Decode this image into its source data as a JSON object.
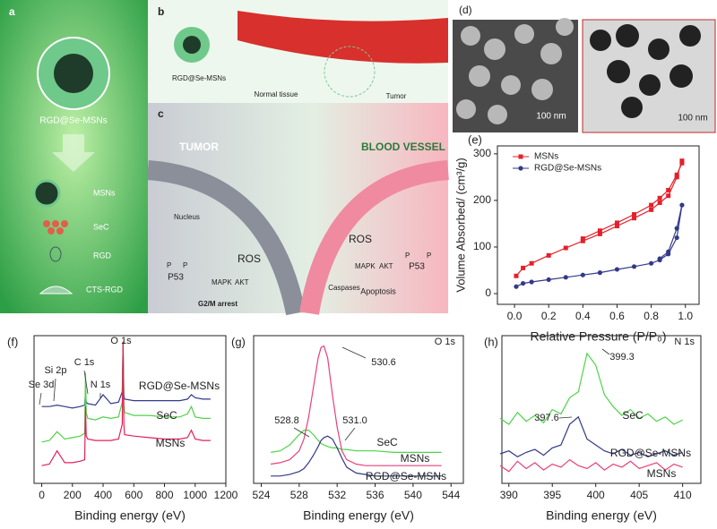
{
  "scheme": {
    "panel_a": {
      "label": "a",
      "title": "RGD@Se-MSNs",
      "components": [
        "MSNs",
        "SeC",
        "RGD",
        "CTS-RGD"
      ]
    },
    "panel_b": {
      "label": "b",
      "nanoparticle": "RGD@Se-MSNs",
      "normal": "Normal tissue",
      "tumor": "Tumor"
    },
    "panel_c": {
      "label": "c",
      "left_title": "TUMOR",
      "right_title": "BLOOD VESSEL",
      "nucleus": "Nucleus",
      "left_ros": "ROS",
      "left_p": [
        "P",
        "P"
      ],
      "left_p53": "P53",
      "left_kinases": [
        "MAPK",
        "AKT"
      ],
      "left_outcome": "G2/M arrest",
      "right_ros": "ROS",
      "right_kinases": [
        "MAPK",
        "AKT"
      ],
      "right_p": [
        "P",
        "P"
      ],
      "right_p53": "P53",
      "caspases": "Caspases",
      "right_outcome": "Apoptosis"
    },
    "panel_d": {
      "label": "(d)",
      "scale_bars": [
        "100 nm",
        "100 nm"
      ]
    }
  },
  "chart_data": [
    {
      "type": "line",
      "label": "(e)",
      "xlabel": "Relative Pressure (P/P₀)",
      "ylabel": "Volume Absorbed/ (cm³/g)",
      "xlim": [
        -0.1,
        1.08
      ],
      "ylim": [
        -23,
        317
      ],
      "xticks": [
        {
          "value": 0,
          "label": "0.0"
        },
        0.2,
        0.4,
        0.6,
        0.8,
        {
          "value": 1,
          "label": "1.0"
        }
      ],
      "yticks": [
        0,
        100,
        200,
        300
      ],
      "legend": "upper left",
      "series": [
        {
          "name": "MSNs",
          "color": "#e4202a",
          "marker": "square",
          "x": [
            0.01,
            0.05,
            0.1,
            0.2,
            0.3,
            0.4,
            0.5,
            0.6,
            0.7,
            0.8,
            0.85,
            0.9,
            0.95,
            0.98,
            0.98,
            0.95,
            0.9,
            0.85,
            0.8,
            0.7,
            0.6,
            0.5,
            0.4
          ],
          "values": [
            38,
            55,
            65,
            82,
            98,
            113,
            128,
            145,
            162,
            180,
            195,
            210,
            250,
            285,
            280,
            255,
            222,
            205,
            190,
            170,
            152,
            135,
            118
          ]
        },
        {
          "name": "RGD@Se-MSNs",
          "color": "#33398a",
          "marker": "circle",
          "x": [
            0.01,
            0.05,
            0.1,
            0.2,
            0.3,
            0.4,
            0.5,
            0.6,
            0.7,
            0.8,
            0.85,
            0.9,
            0.95,
            0.98,
            0.95,
            0.9,
            0.85
          ],
          "values": [
            15,
            22,
            25,
            30,
            35,
            40,
            45,
            52,
            58,
            65,
            72,
            85,
            120,
            190,
            140,
            90,
            75
          ]
        }
      ]
    },
    {
      "type": "line",
      "label": "(f)",
      "xlabel": "Binding energy (eV)",
      "xlim": [
        -50,
        1200
      ],
      "ylim": [
        0,
        100
      ],
      "xticks": [
        0,
        200,
        400,
        600,
        800,
        1000,
        1200
      ],
      "annotations": [
        "O 1s",
        "C 1s",
        "N 1s",
        "Si 2p",
        "Se 3d"
      ],
      "x": [
        0,
        50,
        100,
        150,
        200,
        250,
        280,
        285,
        290,
        300,
        350,
        400,
        450,
        500,
        525,
        530,
        535,
        540,
        600,
        700,
        800,
        900,
        950,
        975,
        1000,
        1050,
        1100
      ],
      "series": [
        {
          "name": "RGD@Se-MSNs",
          "color": "#33398a",
          "values": [
            52,
            52,
            53,
            52,
            51,
            52,
            53,
            62,
            55,
            54,
            53,
            60,
            54,
            55,
            62,
            95,
            60,
            57,
            56,
            56,
            56,
            56,
            57,
            60,
            58,
            57,
            57
          ]
        },
        {
          "name": "SeC",
          "color": "#4fd34a",
          "values": [
            28,
            29,
            35,
            30,
            31,
            32,
            34,
            75,
            48,
            44,
            43,
            45,
            44,
            45,
            55,
            96,
            55,
            48,
            46,
            46,
            45,
            45,
            47,
            52,
            45,
            44,
            44
          ]
        },
        {
          "name": "MSNs",
          "color": "#e4205a",
          "values": [
            12,
            13,
            22,
            14,
            14,
            15,
            16,
            52,
            32,
            30,
            29,
            29,
            29,
            30,
            40,
            96,
            40,
            33,
            32,
            31,
            30,
            30,
            31,
            36,
            30,
            29,
            29
          ]
        }
      ]
    },
    {
      "type": "line",
      "label": "(g)",
      "xlabel": "Binding energy (eV)",
      "xlim": [
        523.2,
        545.3
      ],
      "ylim": [
        0,
        100
      ],
      "xticks": [
        524,
        528,
        532,
        536,
        540,
        544
      ],
      "annotations": [
        "O 1s",
        "530.6",
        "528.8",
        "531.0"
      ],
      "x": [
        525,
        526,
        527,
        528,
        528.5,
        529,
        529.5,
        530,
        530.3,
        530.6,
        531,
        531.5,
        532,
        532.5,
        533,
        534,
        535,
        536,
        538,
        540,
        542,
        543
      ],
      "series": [
        {
          "name": "SeC",
          "color": "#4fd34a",
          "values": [
            21,
            22,
            26,
            33,
            36,
            36,
            33,
            29,
            27,
            26,
            25,
            24,
            24,
            23,
            23,
            22,
            22,
            22,
            21,
            21,
            21,
            21
          ]
        },
        {
          "name": "MSNs",
          "color": "#e8407a",
          "values": [
            13,
            14,
            16,
            22,
            30,
            45,
            65,
            85,
            92,
            93,
            85,
            60,
            38,
            22,
            16,
            13,
            12,
            12,
            12,
            12,
            12,
            12
          ]
        },
        {
          "name": "RGD@Se-MSNs",
          "color": "#33398a",
          "values": [
            5,
            5,
            6,
            8,
            10,
            14,
            19,
            25,
            29,
            31,
            32,
            30,
            24,
            17,
            11,
            7,
            6,
            5,
            5,
            5,
            5,
            5
          ]
        }
      ]
    },
    {
      "type": "line",
      "label": "(h)",
      "xlabel": "Binding energy (eV)",
      "xlim": [
        389.2,
        412.1
      ],
      "ylim": [
        0,
        100
      ],
      "xticks": [
        390,
        395,
        400,
        405,
        410
      ],
      "annotations": [
        "N 1s",
        "399.3",
        "397.6"
      ],
      "x": [
        389,
        390,
        391,
        392,
        393,
        394,
        395,
        396,
        397,
        398,
        399,
        400,
        401,
        402,
        403,
        404,
        405,
        406,
        407,
        408,
        409,
        410
      ],
      "series": [
        {
          "name": "SeC",
          "color": "#4fd34a",
          "values": [
            44,
            40,
            48,
            42,
            46,
            41,
            50,
            47,
            58,
            62,
            88,
            80,
            60,
            52,
            46,
            50,
            44,
            47,
            42,
            45,
            40,
            43
          ]
        },
        {
          "name": "RGD@Se-MSNs",
          "color": "#33398a",
          "values": [
            20,
            22,
            18,
            21,
            23,
            19,
            24,
            26,
            40,
            45,
            30,
            26,
            22,
            20,
            23,
            19,
            21,
            18,
            20,
            22,
            19,
            21
          ]
        },
        {
          "name": "MSNs",
          "color": "#e8407a",
          "values": [
            12,
            8,
            15,
            10,
            14,
            9,
            13,
            11,
            16,
            12,
            10,
            14,
            9,
            13,
            11,
            15,
            10,
            12,
            14,
            9,
            13,
            11
          ]
        }
      ]
    }
  ]
}
